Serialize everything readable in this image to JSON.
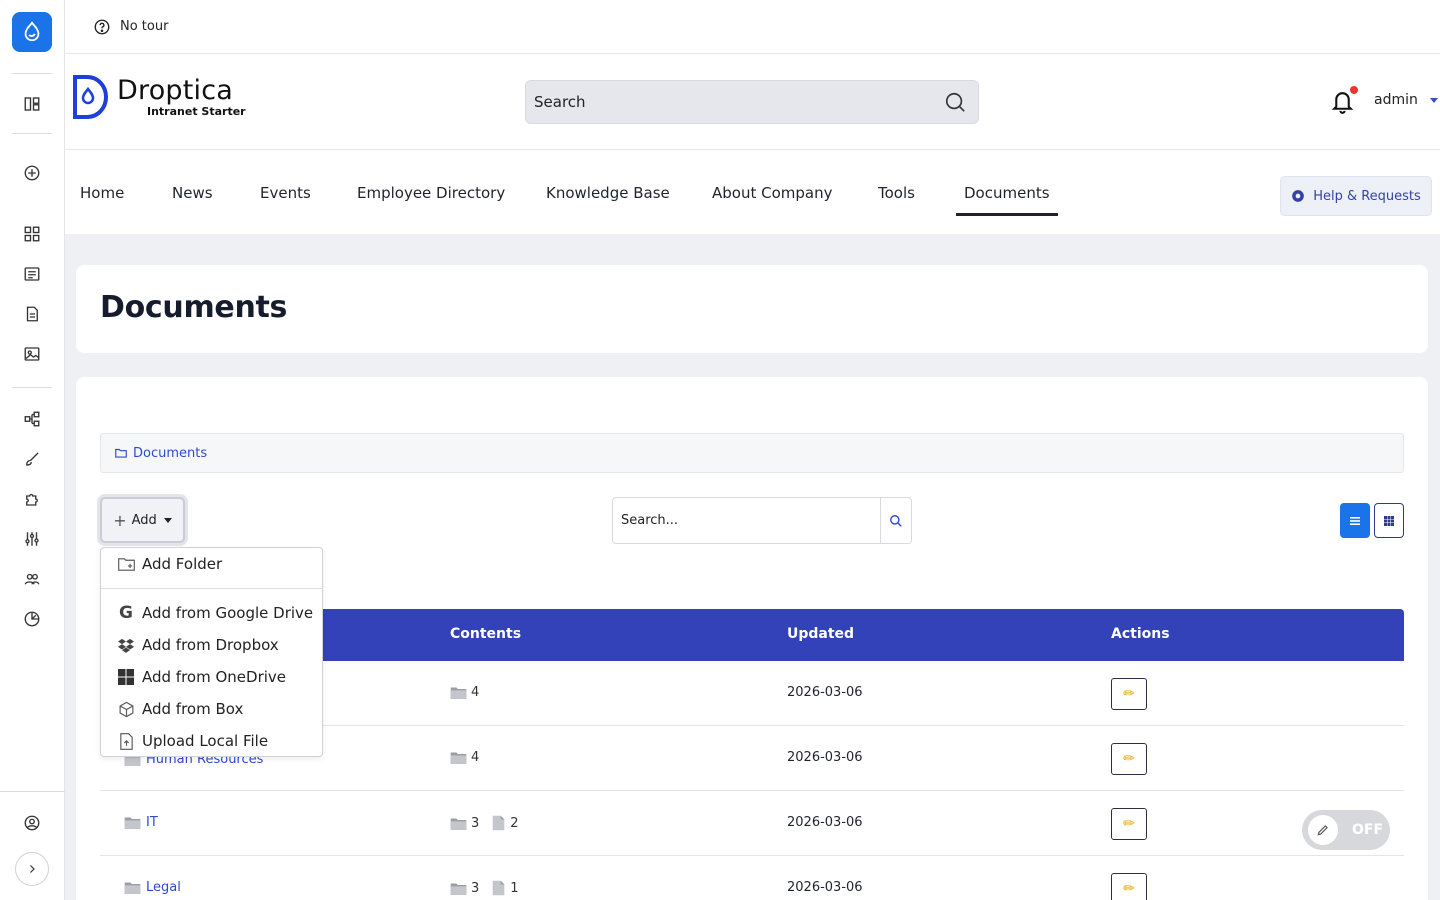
{
  "tour": {
    "label": "No tour"
  },
  "brand": {
    "name": "Droptica",
    "subtitle": "Intranet Starter"
  },
  "header": {
    "search_placeholder": "Search",
    "user": "admin"
  },
  "nav": {
    "items": [
      {
        "label": "Home"
      },
      {
        "label": "News"
      },
      {
        "label": "Events"
      },
      {
        "label": "Employee Directory"
      },
      {
        "label": "Knowledge Base"
      },
      {
        "label": "About Company"
      },
      {
        "label": "Tools"
      },
      {
        "label": "Documents",
        "active": true
      }
    ],
    "help_label": "Help & Requests"
  },
  "page": {
    "title": "Documents"
  },
  "breadcrumb": {
    "label": "Documents"
  },
  "toolbar": {
    "add_label": "Add",
    "search_placeholder": "Search...",
    "view_modes": [
      "list-view-icon",
      "grid-view-icon"
    ]
  },
  "add_menu": {
    "items": [
      {
        "label": "Add Folder",
        "icon": "folder-plus-icon"
      },
      {
        "label": "Add from Google Drive",
        "icon": "google-icon"
      },
      {
        "label": "Add from Dropbox",
        "icon": "dropbox-icon"
      },
      {
        "label": "Add from OneDrive",
        "icon": "windows-icon"
      },
      {
        "label": "Add from Box",
        "icon": "box-icon"
      },
      {
        "label": "Upload Local File",
        "icon": "file-upload-icon"
      }
    ]
  },
  "table": {
    "columns": [
      "Contents",
      "Updated",
      "Actions"
    ],
    "rows": [
      {
        "name": "",
        "folders": "4",
        "files": "",
        "updated": "2026-03-06"
      },
      {
        "name": "Human Resources",
        "folders": "4",
        "files": "",
        "updated": "2026-03-06"
      },
      {
        "name": "IT",
        "folders": "3",
        "files": "2",
        "updated": "2026-03-06"
      },
      {
        "name": "Legal",
        "folders": "3",
        "files": "1",
        "updated": "2026-03-06"
      }
    ]
  },
  "toggle": {
    "label": "OFF"
  },
  "colors": {
    "accent": "#3342b8",
    "primary_blue": "#1a73e8",
    "link": "#2d4bd0",
    "notification": "#e53935"
  }
}
